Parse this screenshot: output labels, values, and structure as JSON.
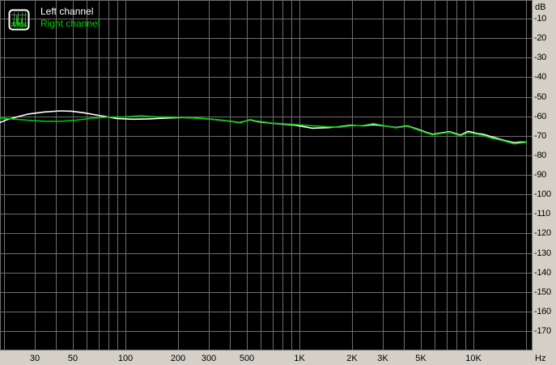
{
  "legend": {
    "items": [
      {
        "label": "Left channel",
        "color": "#ffffff"
      },
      {
        "label": "Right channel",
        "color": "#00cc00"
      }
    ],
    "icon": {
      "name": "spectrum-icon",
      "border": "#ffffff",
      "screen": "#000000",
      "grid": "#4e7e4e",
      "trace": "#00dd00"
    }
  },
  "axes": {
    "y_unit": "dB",
    "x_unit": "Hz",
    "y_ticks": [
      -10,
      -20,
      -30,
      -40,
      -50,
      -60,
      -70,
      -80,
      -90,
      -100,
      -110,
      -120,
      -130,
      -140,
      -150,
      -160,
      -170
    ],
    "x_ticks": [
      {
        "label": "30",
        "value": 30
      },
      {
        "label": "50",
        "value": 50
      },
      {
        "label": "100",
        "value": 100
      },
      {
        "label": "200",
        "value": 200
      },
      {
        "label": "300",
        "value": 300
      },
      {
        "label": "500",
        "value": 500
      },
      {
        "label": "1K",
        "value": 1000
      },
      {
        "label": "2K",
        "value": 2000
      },
      {
        "label": "3K",
        "value": 3000
      },
      {
        "label": "5K",
        "value": 5000
      },
      {
        "label": "10K",
        "value": 10000
      }
    ]
  },
  "colors": {
    "plot_background": "#000000",
    "grid": "#6e6e6e",
    "axis_background": "#d4d0c8",
    "axis_text": "#000000",
    "left_channel": "#ffffff",
    "right_channel": "#00cc00"
  },
  "chart_data": {
    "type": "line",
    "title": "",
    "xlabel": "Hz",
    "ylabel": "dB",
    "x_scale": "log",
    "xlim": [
      20,
      20000
    ],
    "ylim": [
      -180,
      0
    ],
    "grid": "on",
    "legend_position": "top-left",
    "x_gridlines": [
      20,
      30,
      40,
      50,
      60,
      70,
      80,
      90,
      100,
      200,
      300,
      400,
      500,
      600,
      700,
      800,
      900,
      1000,
      2000,
      3000,
      4000,
      5000,
      6000,
      7000,
      8000,
      9000,
      10000,
      20000
    ],
    "y_gridlines": [
      -10,
      -20,
      -30,
      -40,
      -50,
      -60,
      -70,
      -80,
      -90,
      -100,
      -110,
      -120,
      -130,
      -140,
      -150,
      -160,
      -170
    ],
    "series": [
      {
        "name": "Left channel",
        "color": "#ffffff",
        "points": [
          [
            18.8,
            -63.4
          ],
          [
            20.9,
            -61.7
          ],
          [
            23.4,
            -60.5
          ],
          [
            27.4,
            -58.9
          ],
          [
            34,
            -57.8
          ],
          [
            42,
            -57.2
          ],
          [
            49,
            -57.4
          ],
          [
            58,
            -58.2
          ],
          [
            72,
            -59.7
          ],
          [
            89,
            -61.1
          ],
          [
            110,
            -61.5
          ],
          [
            136,
            -61.3
          ],
          [
            169,
            -60.9
          ],
          [
            210,
            -60.6
          ],
          [
            260,
            -60.9
          ],
          [
            321,
            -61.6
          ],
          [
            390,
            -62.4
          ],
          [
            455,
            -63.2
          ],
          [
            520,
            -61.8
          ],
          [
            580,
            -62.8
          ],
          [
            718,
            -63.7
          ],
          [
            937,
            -64.5
          ],
          [
            1190,
            -66.1
          ],
          [
            1470,
            -65.8
          ],
          [
            1700,
            -65.3
          ],
          [
            1950,
            -64.6
          ],
          [
            2320,
            -64.9
          ],
          [
            2660,
            -64.3
          ],
          [
            3030,
            -64.8
          ],
          [
            3560,
            -65.7
          ],
          [
            4180,
            -64.9
          ],
          [
            4740,
            -66.5
          ],
          [
            5440,
            -68.4
          ],
          [
            5840,
            -69.2
          ],
          [
            6590,
            -68.4
          ],
          [
            7290,
            -67.9
          ],
          [
            8420,
            -69.6
          ],
          [
            9330,
            -67.7
          ],
          [
            10500,
            -68.8
          ],
          [
            11400,
            -69.2
          ],
          [
            12700,
            -70.5
          ],
          [
            15300,
            -72.5
          ],
          [
            17100,
            -73.5
          ],
          [
            18600,
            -73.2
          ],
          [
            20100,
            -73.2
          ]
        ]
      },
      {
        "name": "Right channel",
        "color": "#00cc00",
        "points": [
          [
            18.8,
            -60.9
          ],
          [
            22.2,
            -61.3
          ],
          [
            27.4,
            -62.0
          ],
          [
            34,
            -62.5
          ],
          [
            42,
            -62.6
          ],
          [
            52,
            -62.0
          ],
          [
            64.5,
            -60.9
          ],
          [
            80,
            -60.4
          ],
          [
            99,
            -60.3
          ],
          [
            122,
            -59.7
          ],
          [
            151,
            -60.3
          ],
          [
            188,
            -60.4
          ],
          [
            233,
            -60.7
          ],
          [
            288,
            -61.3
          ],
          [
            356,
            -61.9
          ],
          [
            421,
            -62.9
          ],
          [
            459,
            -63.3
          ],
          [
            520,
            -61.6
          ],
          [
            567,
            -62.4
          ],
          [
            705,
            -63.5
          ],
          [
            908,
            -64.1
          ],
          [
            1160,
            -64.8
          ],
          [
            1470,
            -65.4
          ],
          [
            1700,
            -65.6
          ],
          [
            1950,
            -64.9
          ],
          [
            2320,
            -64.7
          ],
          [
            2660,
            -63.7
          ],
          [
            3120,
            -64.9
          ],
          [
            3560,
            -65.9
          ],
          [
            4180,
            -65.1
          ],
          [
            4740,
            -66.8
          ],
          [
            5440,
            -68.7
          ],
          [
            5840,
            -69.5
          ],
          [
            6590,
            -68.7
          ],
          [
            7290,
            -68.2
          ],
          [
            8420,
            -70.0
          ],
          [
            9330,
            -68.3
          ],
          [
            10500,
            -69.2
          ],
          [
            11400,
            -69.8
          ],
          [
            12700,
            -71.2
          ],
          [
            14500,
            -72.3
          ],
          [
            15300,
            -72.9
          ],
          [
            17100,
            -74.1
          ],
          [
            18600,
            -73.7
          ],
          [
            20100,
            -73.4
          ]
        ]
      }
    ]
  }
}
